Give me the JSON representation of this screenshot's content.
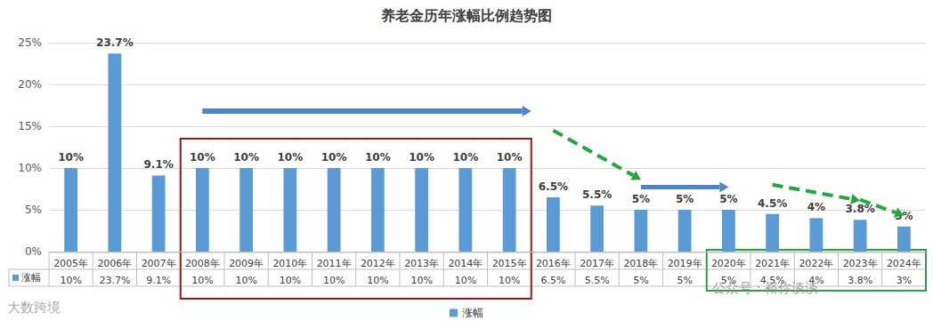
{
  "chart_data": {
    "type": "bar",
    "title": "养老金历年涨幅比例趋势图",
    "categories": [
      "2005年",
      "2006年",
      "2007年",
      "2008年",
      "2009年",
      "2010年",
      "2011年",
      "2012年",
      "2013年",
      "2014年",
      "2015年",
      "2016年",
      "2017年",
      "2018年",
      "2019年",
      "2020年",
      "2021年",
      "2022年",
      "2023年",
      "2024年"
    ],
    "series": [
      {
        "name": "涨幅",
        "color": "#5b9bd5",
        "values": [
          10,
          23.7,
          9.1,
          10,
          10,
          10,
          10,
          10,
          10,
          10,
          10,
          6.5,
          5.5,
          5,
          5,
          5,
          4.5,
          4,
          3.8,
          3
        ],
        "value_labels": [
          "10%",
          "23.7%",
          "9.1%",
          "10%",
          "10%",
          "10%",
          "10%",
          "10%",
          "10%",
          "10%",
          "10%",
          "6.5%",
          "5.5%",
          "5%",
          "5%",
          "5%",
          "4.5%",
          "4%",
          "3.8%",
          "3%"
        ]
      }
    ],
    "ylim": [
      0,
      25
    ],
    "yticks": [
      {
        "value": 0,
        "label": "0%"
      },
      {
        "value": 5,
        "label": "5%"
      },
      {
        "value": 10,
        "label": "10%"
      },
      {
        "value": 15,
        "label": "15%"
      },
      {
        "value": 20,
        "label": "20%"
      },
      {
        "value": 25,
        "label": "25%"
      }
    ],
    "grid": true,
    "data_labels": true,
    "legend": "bottom",
    "annotations": [
      "大数跨境",
      "公众号 · 裕你谈谈"
    ]
  }
}
